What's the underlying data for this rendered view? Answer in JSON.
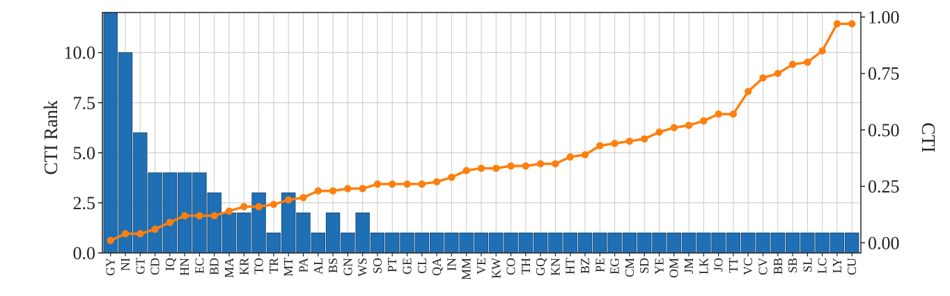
{
  "chart_data": {
    "type": "bar",
    "categories": [
      "GY",
      "NI",
      "GT",
      "CD",
      "IQ",
      "HN",
      "EC",
      "BD",
      "MA",
      "KR",
      "TO",
      "TR",
      "MT",
      "PA",
      "AL",
      "BS",
      "GN",
      "WS",
      "SO",
      "PT",
      "GE",
      "CL",
      "QA",
      "IN",
      "MM",
      "VE",
      "KW",
      "CO",
      "TH",
      "GQ",
      "KN",
      "HT",
      "BZ",
      "PE",
      "EG",
      "CM",
      "SD",
      "YE",
      "OM",
      "JM",
      "LK",
      "JO",
      "TT",
      "VC",
      "CV",
      "BB",
      "SB",
      "SL",
      "LC",
      "LY",
      "CU"
    ],
    "xlabel": "",
    "ylabel": "CTI Rank",
    "y2label": "CTI",
    "ylim": [
      0,
      12
    ],
    "y2lim": [
      -0.045,
      1.02
    ],
    "yticks": [
      0.0,
      2.5,
      5.0,
      7.5,
      10.0
    ],
    "ytick_labels": [
      "0.0",
      "2.5",
      "5.0",
      "7.5",
      "10.0"
    ],
    "y2ticks": [
      0.0,
      0.25,
      0.5,
      0.75,
      1.0
    ],
    "y2tick_labels": [
      "0.00",
      "0.25",
      "0.50",
      "0.75",
      "1.00"
    ],
    "grid": true,
    "series": [
      {
        "type": "bar",
        "axis": "left",
        "color": "#1f6fb4",
        "values": [
          12,
          10,
          6,
          4,
          4,
          4,
          4,
          3,
          2,
          2,
          3,
          1,
          3,
          2,
          1,
          2,
          1,
          2,
          1,
          1,
          1,
          1,
          1,
          1,
          1,
          1,
          1,
          1,
          1,
          1,
          1,
          1,
          1,
          1,
          1,
          1,
          1,
          1,
          1,
          1,
          1,
          1,
          1,
          1,
          1,
          1,
          1,
          1,
          1,
          1,
          1
        ]
      },
      {
        "type": "line",
        "axis": "right",
        "color": "#ff7f0e",
        "values": [
          0.01,
          0.04,
          0.04,
          0.06,
          0.09,
          0.12,
          0.12,
          0.12,
          0.14,
          0.16,
          0.16,
          0.17,
          0.19,
          0.2,
          0.23,
          0.23,
          0.24,
          0.24,
          0.26,
          0.26,
          0.26,
          0.26,
          0.27,
          0.29,
          0.32,
          0.33,
          0.33,
          0.34,
          0.34,
          0.35,
          0.35,
          0.38,
          0.39,
          0.43,
          0.44,
          0.45,
          0.46,
          0.49,
          0.51,
          0.52,
          0.54,
          0.57,
          0.57,
          0.67,
          0.73,
          0.75,
          0.79,
          0.8,
          0.85,
          0.97,
          0.97
        ]
      }
    ]
  }
}
